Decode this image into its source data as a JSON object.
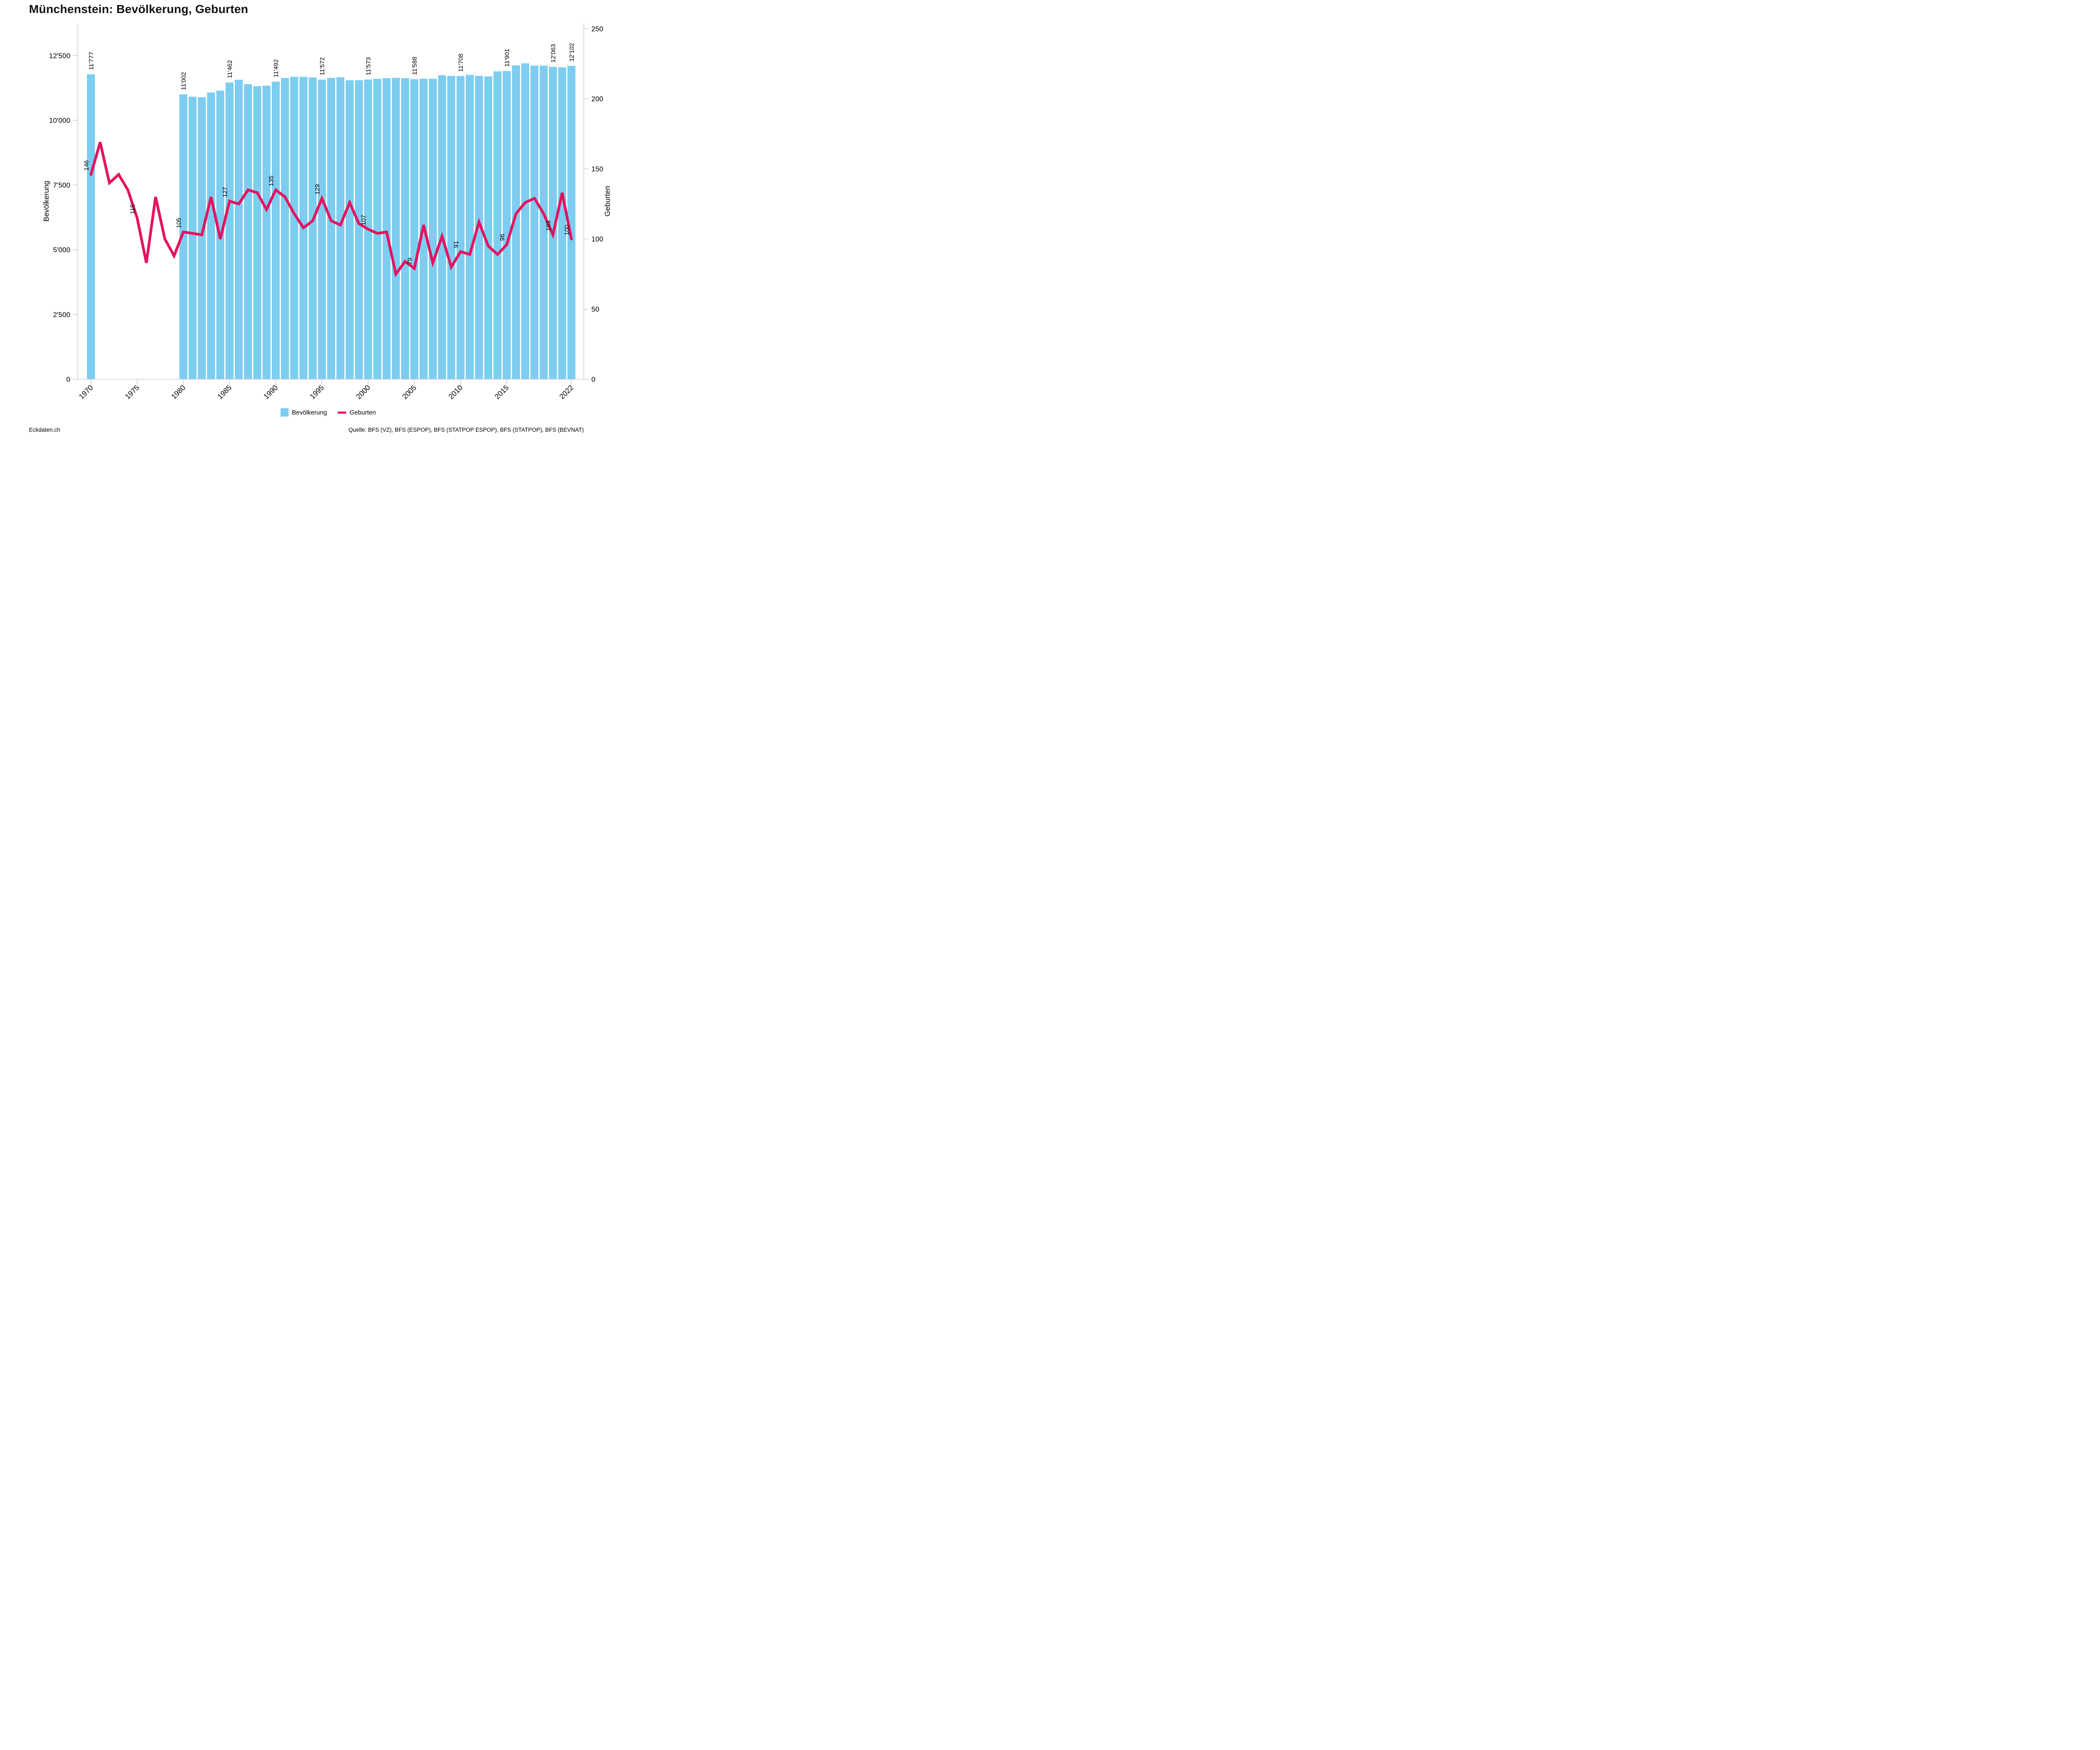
{
  "title": "Münchenstein: Bevölkerung, Geburten",
  "legend": {
    "population_label": "Bevölkerung",
    "births_label": "Geburten"
  },
  "footer": {
    "left": "Eckdaten.ch",
    "right": "Quelle: BFS (VZ), BFS (ESPOP), BFS (STATPOP ESPOP), BFS (STATPOP), BFS (BEVNAT)"
  },
  "chart_data": {
    "type": "bar+line",
    "title": "Münchenstein: Bevölkerung, Geburten",
    "x_start_year": 1970,
    "x_end_year": 2022,
    "x_axis": {
      "tick_years": [
        1970,
        1975,
        1980,
        1985,
        1990,
        1995,
        2000,
        2005,
        2010,
        2015,
        2022
      ]
    },
    "left_axis": {
      "label": "Bevölkerung",
      "range": [
        0,
        12500
      ],
      "ticks": [
        0,
        2500,
        5000,
        7500,
        10000,
        12500
      ],
      "tick_labels": [
        "0",
        "2'500",
        "5'000",
        "7'500",
        "10'000",
        "12'500"
      ]
    },
    "right_axis": {
      "label": "Geburten",
      "range": [
        0,
        250
      ],
      "ticks": [
        0,
        50,
        100,
        150,
        200,
        250
      ],
      "tick_labels": [
        "0",
        "50",
        "100",
        "150",
        "200",
        "250"
      ]
    },
    "colors": {
      "bar": "#7dcdf1",
      "line": "#e4135f",
      "axis": "#c6c6c6",
      "text": "#000000"
    },
    "series": [
      {
        "name": "Bevölkerung",
        "type": "bar",
        "axis": "left",
        "years": [
          1970,
          1980,
          1981,
          1982,
          1983,
          1984,
          1985,
          1986,
          1987,
          1988,
          1989,
          1990,
          1991,
          1992,
          1993,
          1994,
          1995,
          1996,
          1997,
          1998,
          1999,
          2000,
          2001,
          2002,
          2003,
          2004,
          2005,
          2006,
          2007,
          2008,
          2009,
          2010,
          2011,
          2012,
          2013,
          2014,
          2015,
          2016,
          2017,
          2018,
          2019,
          2020,
          2021,
          2022
        ],
        "values": [
          11777,
          11002,
          10910,
          10890,
          11070,
          11145,
          11462,
          11565,
          11395,
          11315,
          11335,
          11492,
          11635,
          11680,
          11680,
          11655,
          11572,
          11635,
          11660,
          11545,
          11545,
          11573,
          11600,
          11625,
          11640,
          11625,
          11588,
          11605,
          11605,
          11740,
          11715,
          11708,
          11755,
          11715,
          11695,
          11890,
          11901,
          12120,
          12200,
          12110,
          12110,
          12063,
          12045,
          12102
        ],
        "data_labels": [
          {
            "year": 1970,
            "text": "11'777"
          },
          {
            "year": 1980,
            "text": "11'002"
          },
          {
            "year": 1985,
            "text": "11'462"
          },
          {
            "year": 1990,
            "text": "11'492"
          },
          {
            "year": 1995,
            "text": "11'572"
          },
          {
            "year": 2000,
            "text": "11'573"
          },
          {
            "year": 2005,
            "text": "11'588"
          },
          {
            "year": 2010,
            "text": "11'708"
          },
          {
            "year": 2015,
            "text": "11'901"
          },
          {
            "year": 2020,
            "text": "12'063"
          },
          {
            "year": 2022,
            "text": "12'102"
          }
        ]
      },
      {
        "name": "Geburten",
        "type": "line",
        "axis": "right",
        "years": [
          1970,
          1971,
          1972,
          1973,
          1974,
          1975,
          1976,
          1977,
          1978,
          1979,
          1980,
          1981,
          1982,
          1983,
          1984,
          1985,
          1986,
          1987,
          1988,
          1989,
          1990,
          1991,
          1992,
          1993,
          1994,
          1995,
          1996,
          1997,
          1998,
          1999,
          2000,
          2001,
          2002,
          2003,
          2004,
          2005,
          2006,
          2007,
          2008,
          2009,
          2010,
          2011,
          2012,
          2013,
          2014,
          2015,
          2016,
          2017,
          2018,
          2019,
          2020,
          2021,
          2022
        ],
        "values": [
          146,
          169,
          140,
          146,
          135,
          115,
          83,
          130,
          100,
          88,
          105,
          104,
          103,
          130,
          100,
          127,
          125,
          135,
          133,
          121,
          135,
          130,
          118,
          108,
          113,
          129,
          113,
          110,
          126,
          111,
          107,
          104,
          105,
          75,
          84,
          79,
          110,
          83,
          102,
          80,
          91,
          89,
          112,
          95,
          89,
          96,
          118,
          126,
          129,
          118,
          103,
          133,
          100
        ],
        "data_labels": [
          {
            "year": 1970,
            "text": "146"
          },
          {
            "year": 1975,
            "text": "115"
          },
          {
            "year": 1980,
            "text": "105"
          },
          {
            "year": 1985,
            "text": "127"
          },
          {
            "year": 1990,
            "text": "135"
          },
          {
            "year": 1995,
            "text": "129"
          },
          {
            "year": 2000,
            "text": "107"
          },
          {
            "year": 2005,
            "text": "79"
          },
          {
            "year": 2010,
            "text": "91"
          },
          {
            "year": 2015,
            "text": "96"
          },
          {
            "year": 2020,
            "text": "103"
          },
          {
            "year": 2022,
            "text": "100"
          }
        ]
      }
    ]
  }
}
